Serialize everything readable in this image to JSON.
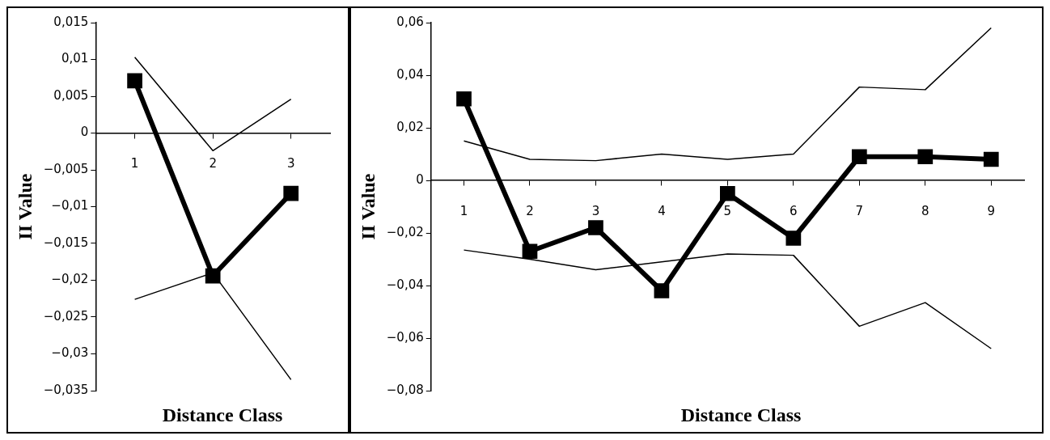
{
  "chart_data": [
    {
      "type": "line",
      "xlabel": "Distance Class",
      "ylabel": "II Value",
      "categories": [
        "1",
        "2",
        "3"
      ],
      "ylim": [
        -0.035,
        0.015
      ],
      "yticks": [
        {
          "value": 0.015,
          "label": "0,015"
        },
        {
          "value": 0.01,
          "label": "0,01"
        },
        {
          "value": 0.005,
          "label": "0,005"
        },
        0,
        {
          "value": -0.005,
          "label": "−0,005"
        },
        {
          "value": -0.01,
          "label": "−0,01"
        },
        {
          "value": -0.015,
          "label": "−0,015"
        },
        {
          "value": -0.02,
          "label": "−0,02"
        },
        {
          "value": -0.025,
          "label": "−0,025"
        },
        {
          "value": -0.03,
          "label": "−0,03"
        },
        {
          "value": -0.035,
          "label": "−0,035"
        }
      ],
      "grid": false,
      "legend": false,
      "series": [
        {
          "color": "#000000",
          "marker": "none",
          "values": [
            0.0103,
            -0.0024,
            0.0046
          ]
        },
        {
          "color": "#000000",
          "marker": "none",
          "values": [
            -0.0226,
            -0.019,
            -0.0335
          ]
        },
        {
          "color": "#000000",
          "marker": "square",
          "values": [
            0.0071,
            -0.0194,
            -0.0082
          ]
        }
      ]
    },
    {
      "type": "line",
      "xlabel": "Distance Class",
      "ylabel": "II Value",
      "categories": [
        "1",
        "2",
        "3",
        "4",
        "5",
        "6",
        "7",
        "8",
        "9"
      ],
      "ylim": [
        -0.08,
        0.06
      ],
      "yticks": [
        {
          "value": 0.06,
          "label": "0,06"
        },
        {
          "value": 0.04,
          "label": "0,04"
        },
        {
          "value": 0.02,
          "label": "0,02"
        },
        0,
        {
          "value": -0.02,
          "label": "−0,02"
        },
        {
          "value": -0.04,
          "label": "−0,04"
        },
        {
          "value": -0.06,
          "label": "−0,06"
        },
        {
          "value": -0.08,
          "label": "−0,08"
        }
      ],
      "grid": false,
      "legend": false,
      "series": [
        {
          "color": "#000000",
          "marker": "none",
          "values": [
            0.015,
            0.008,
            0.0075,
            0.01,
            0.008,
            0.01,
            0.0355,
            0.0345,
            0.058
          ]
        },
        {
          "color": "#000000",
          "marker": "none",
          "values": [
            -0.0265,
            -0.03,
            -0.034,
            -0.031,
            -0.028,
            -0.0285,
            -0.0555,
            -0.0465,
            -0.064
          ]
        },
        {
          "color": "#000000",
          "marker": "square",
          "values": [
            0.031,
            -0.027,
            -0.018,
            -0.042,
            -0.005,
            -0.022,
            0.009,
            0.009,
            0.008
          ]
        }
      ]
    }
  ]
}
